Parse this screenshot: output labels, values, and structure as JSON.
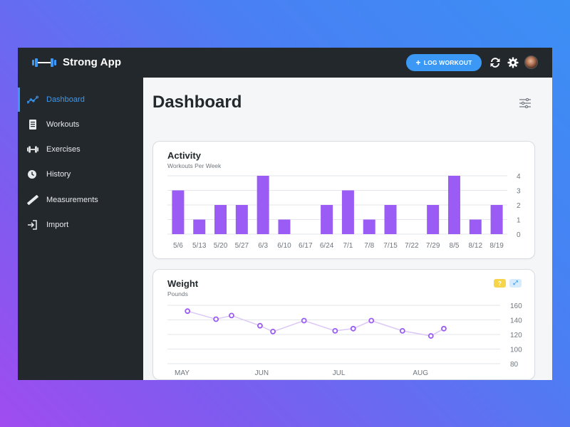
{
  "app": {
    "title": "Strong App",
    "log_workout_label": "LOG WORKOUT",
    "icons": {
      "logo": "dumbbell-logo-icon",
      "plus": "plus-icon",
      "sync": "sync-icon",
      "settings": "gear-icon",
      "avatar": "user-avatar"
    }
  },
  "sidebar": {
    "items": [
      {
        "label": "Dashboard",
        "icon": "chart-line-icon",
        "active": true
      },
      {
        "label": "Workouts",
        "icon": "clipboard-icon",
        "active": false
      },
      {
        "label": "Exercises",
        "icon": "dumbbell-icon",
        "active": false
      },
      {
        "label": "History",
        "icon": "clock-icon",
        "active": false
      },
      {
        "label": "Measurements",
        "icon": "ruler-icon",
        "active": false
      },
      {
        "label": "Import",
        "icon": "import-icon",
        "active": false
      }
    ]
  },
  "main": {
    "title": "Dashboard",
    "filter_icon": "sliders-icon"
  },
  "colors": {
    "accent": "#3b99f5",
    "bar": "#9b5cf6",
    "line": "#dcc8f7",
    "marker": "#9b5cf6",
    "sidebar_bg": "#22282c"
  },
  "chart_data": [
    {
      "type": "bar",
      "title": "Activity",
      "subtitle": "Workouts Per Week",
      "categories": [
        "5/6",
        "5/13",
        "5/20",
        "5/27",
        "6/3",
        "6/10",
        "6/17",
        "6/24",
        "7/1",
        "7/8",
        "7/15",
        "7/22",
        "7/29",
        "8/5",
        "8/12",
        "8/19"
      ],
      "values": [
        3,
        1,
        2,
        2,
        4,
        1,
        0,
        2,
        3,
        1,
        2,
        0,
        2,
        4,
        1,
        2
      ],
      "ylim": [
        0,
        4
      ],
      "yticks": [
        0,
        1,
        2,
        3,
        4
      ],
      "grid": true
    },
    {
      "type": "line",
      "title": "Weight",
      "subtitle": "Pounds",
      "x_labels": [
        "MAY",
        "JUN",
        "JUL",
        "AUG"
      ],
      "points": [
        {
          "x": "5/6",
          "y": 152
        },
        {
          "x": "5/17",
          "y": 141
        },
        {
          "x": "5/23",
          "y": 146
        },
        {
          "x": "6/3",
          "y": 132
        },
        {
          "x": "6/8",
          "y": 124
        },
        {
          "x": "6/20",
          "y": 139
        },
        {
          "x": "7/2",
          "y": 125
        },
        {
          "x": "7/9",
          "y": 128
        },
        {
          "x": "7/16",
          "y": 139
        },
        {
          "x": "7/28",
          "y": 125
        },
        {
          "x": "8/8",
          "y": 118
        },
        {
          "x": "8/13",
          "y": 128
        }
      ],
      "ylim": [
        80,
        160
      ],
      "yticks": [
        80,
        100,
        120,
        140,
        160
      ],
      "grid": true,
      "controls": {
        "help_icon": "question-icon",
        "expand_icon": "expand-icon"
      }
    }
  ]
}
